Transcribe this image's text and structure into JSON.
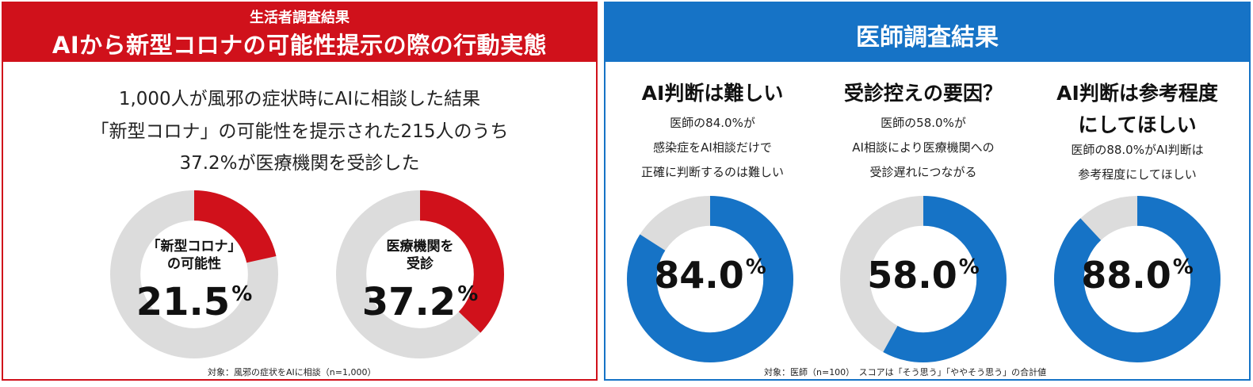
{
  "left": {
    "header_sub": "生活者調査結果",
    "header_main": "AIから新型コロナの可能性提示の際の行動実態",
    "summary": [
      "1,000人が風邪の症状時にAIに相談した結果",
      "「新型コロナ」の可能性を提示された215人のうち",
      "37.2%が医療機関を受診した"
    ],
    "donuts": [
      {
        "label_lines": [
          "「新型コロナ」",
          "の可能性"
        ],
        "value_text": "21.5",
        "unit": "%"
      },
      {
        "label_lines": [
          "医療機関を",
          "受診"
        ],
        "value_text": "37.2",
        "unit": "%"
      }
    ],
    "footnote": "対象：風邪の症状をAIに相談（n=1,000）",
    "colors": {
      "accent": "#d0111b",
      "track": "#dcdcdc"
    }
  },
  "right": {
    "header_main": "医師調査結果",
    "columns": [
      {
        "heading_lines": [
          "AI判断は難しい"
        ],
        "desc_lines": [
          "医師の84.0%が",
          "感染症をAI相談だけで",
          "正確に判断するのは難しい"
        ],
        "value_text": "84.0",
        "unit": "%"
      },
      {
        "heading_lines": [
          "受診控えの要因？"
        ],
        "desc_lines": [
          "医師の58.0%が",
          "AI相談により医療機関への",
          "受診遅れにつながる"
        ],
        "value_text": "58.0",
        "unit": "%"
      },
      {
        "heading_lines": [
          "AI判断は参考程度",
          "にしてほしい"
        ],
        "desc_lines": [
          "医師の88.0%がAI判断は",
          "参考程度にしてほしい"
        ],
        "value_text": "88.0",
        "unit": "%"
      }
    ],
    "footnote": "対象：医師（n=100）　スコアは「そう思う」「ややそう思う」の合計値",
    "colors": {
      "accent": "#1673c6",
      "track": "#dcdcdc"
    }
  },
  "chart_data": [
    {
      "type": "pie",
      "title": "",
      "categories": [
        "「新型コロナ」の可能性",
        ""
      ],
      "values": [
        21.5,
        78.5
      ],
      "display": "donut"
    },
    {
      "type": "pie",
      "title": "",
      "categories": [
        "医療機関を受診",
        ""
      ],
      "values": [
        37.2,
        62.8
      ],
      "display": "donut"
    },
    {
      "type": "pie",
      "title": "AI判断は難しい",
      "categories": [
        "",
        ""
      ],
      "values": [
        84.0,
        16.0
      ],
      "display": "donut"
    },
    {
      "type": "pie",
      "title": "受診控えの要因？",
      "categories": [
        "",
        ""
      ],
      "values": [
        58.0,
        42.0
      ],
      "display": "donut"
    },
    {
      "type": "pie",
      "title": "AI判断は参考程度にしてほしい",
      "categories": [
        "",
        ""
      ],
      "values": [
        88.0,
        12.0
      ],
      "display": "donut"
    }
  ]
}
